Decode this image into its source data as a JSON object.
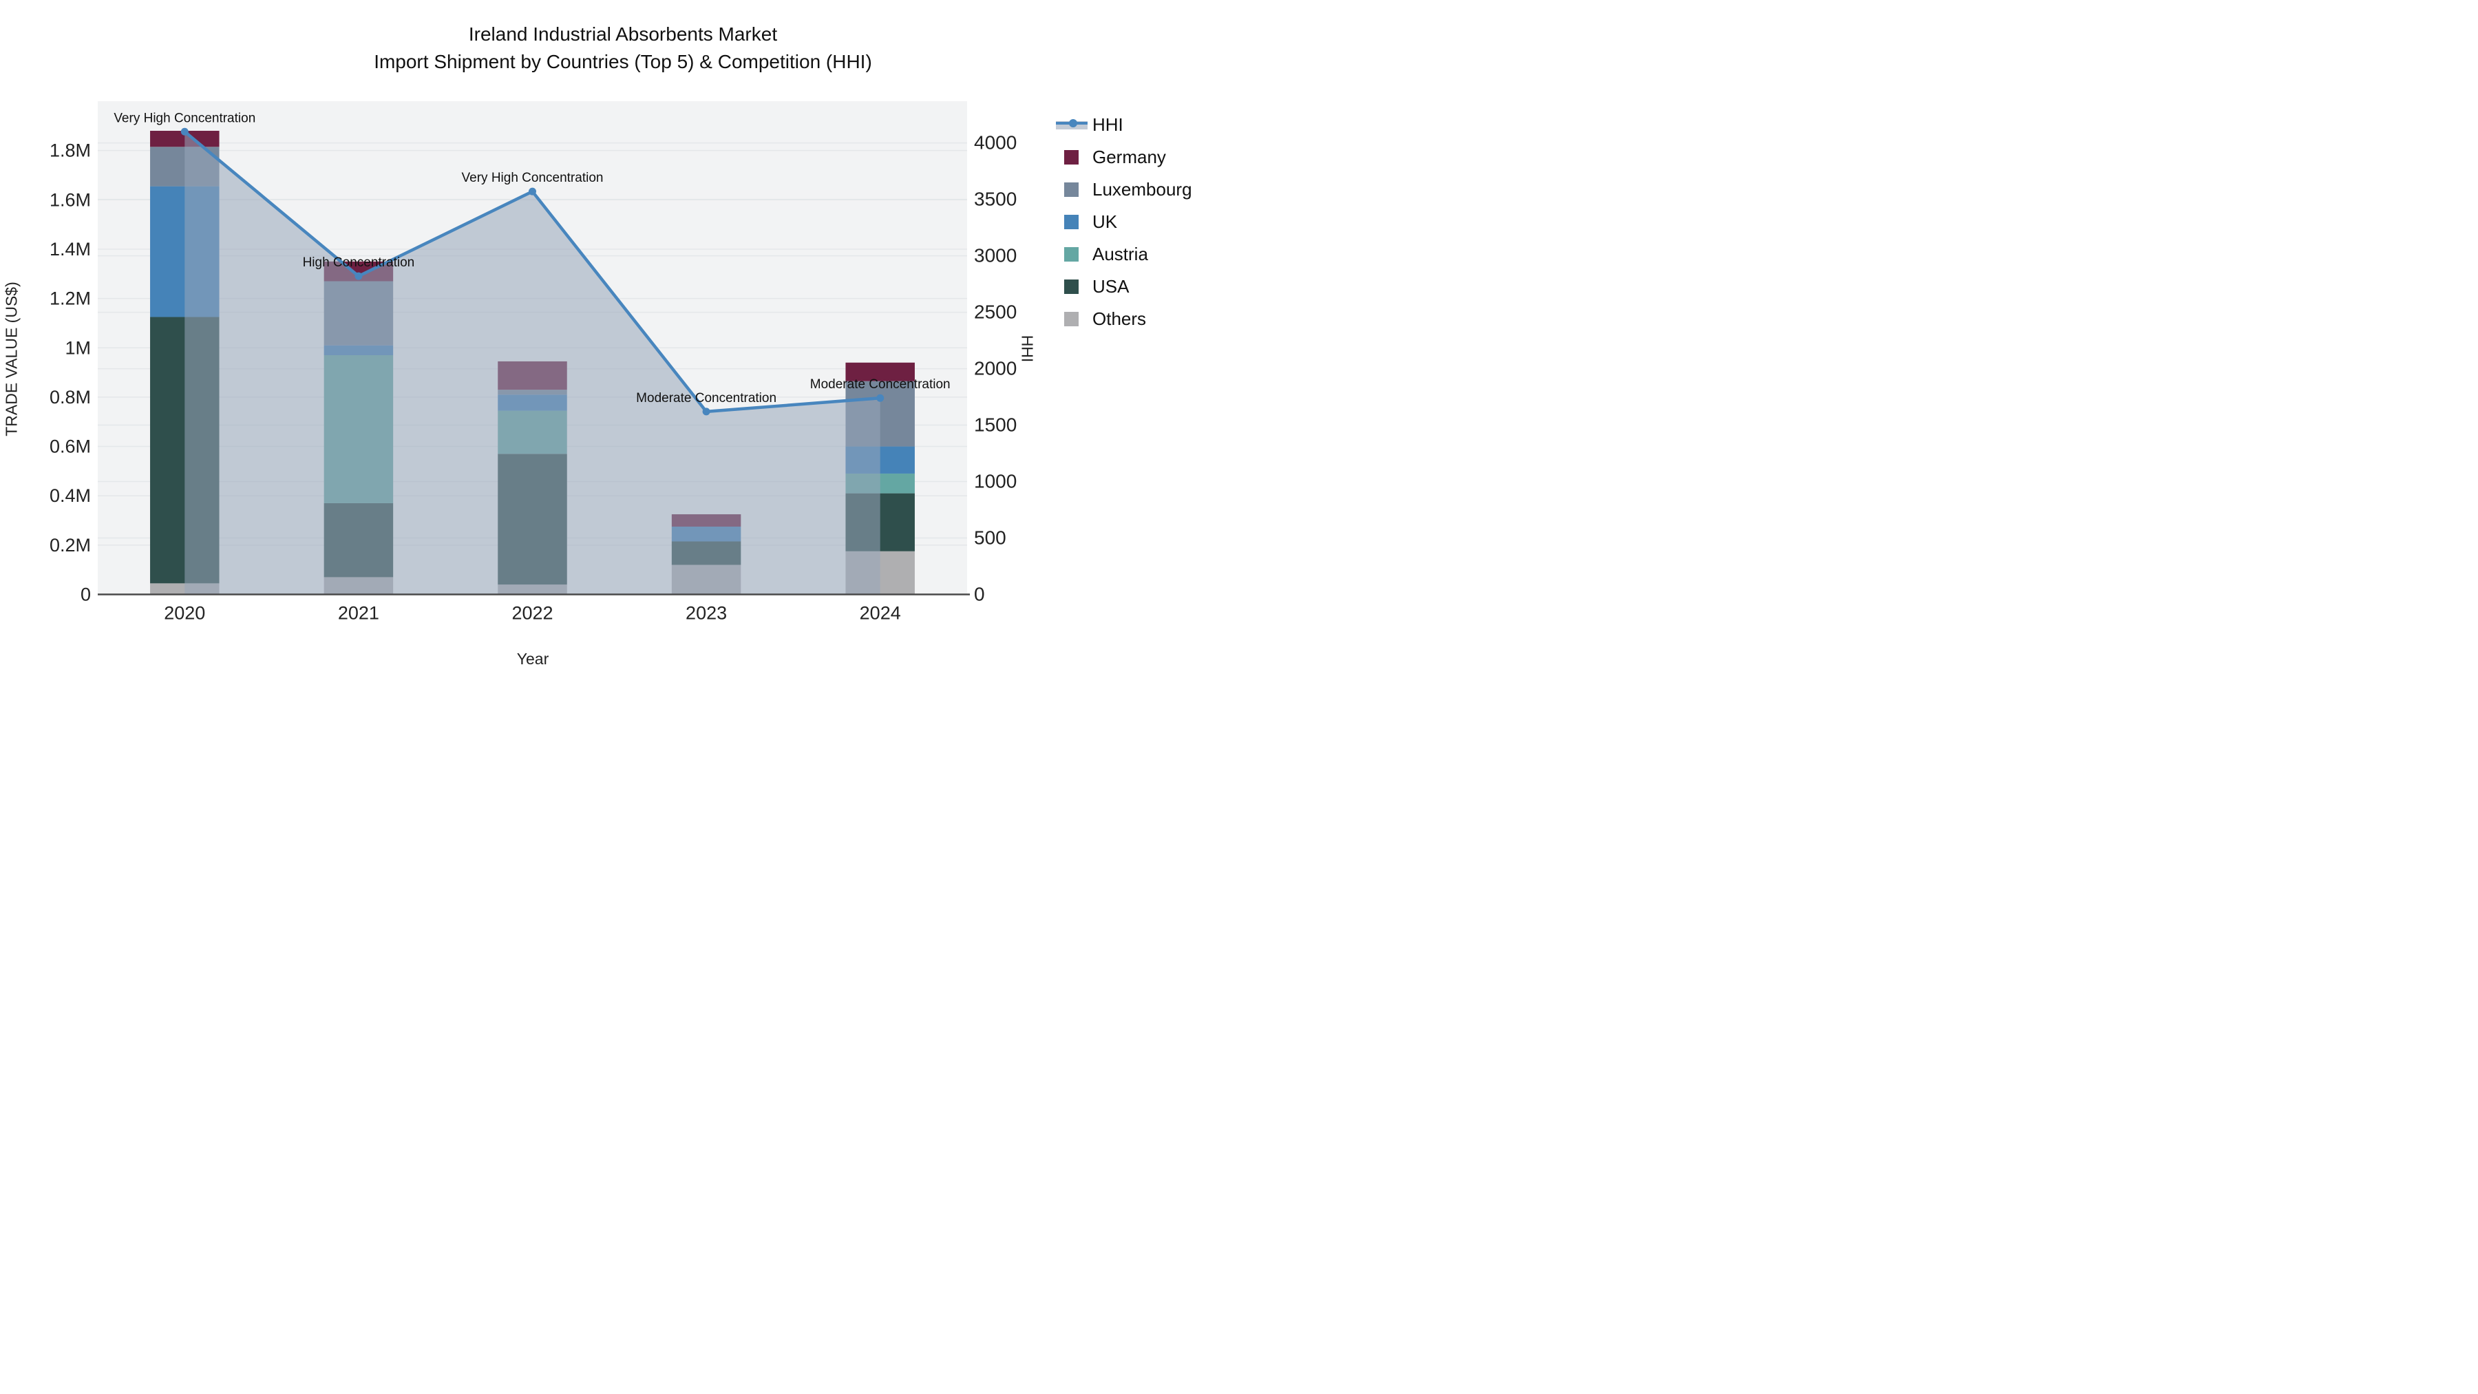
{
  "page": {
    "kind": "chart-figure"
  },
  "chart_data": {
    "type": "bar",
    "subtype": "stacked-bar-with-line",
    "title_line1": "Ireland Industrial Absorbents Market",
    "title_line2": "Import Shipment by Countries (Top 5) & Competition (HHI)",
    "xlabel": "Year",
    "ylabel_left": "TRADE VALUE (US$)",
    "ylabel_right": "HHI",
    "categories": [
      "2020",
      "2021",
      "2022",
      "2023",
      "2024"
    ],
    "bar_unit": "million US$",
    "series": [
      {
        "name": "Others",
        "color": "#AFAFB1",
        "values": [
          0.045,
          0.07,
          0.04,
          0.12,
          0.175
        ]
      },
      {
        "name": "USA",
        "color": "#2F4F4C",
        "values": [
          1.08,
          0.3,
          0.53,
          0.095,
          0.235
        ]
      },
      {
        "name": "Austria",
        "color": "#64A7A3",
        "values": [
          0,
          0.6,
          0.175,
          0,
          0.08
        ]
      },
      {
        "name": "UK",
        "color": "#4583B8",
        "values": [
          0.53,
          0.04,
          0.065,
          0.06,
          0.11
        ]
      },
      {
        "name": "Luxembourg",
        "color": "#76879B",
        "values": [
          0.16,
          0.26,
          0.02,
          0,
          0.265
        ]
      },
      {
        "name": "Germany",
        "color": "#6E2042",
        "values": [
          0.065,
          0.08,
          0.115,
          0.05,
          0.075
        ]
      }
    ],
    "bar_totals": [
      1.88,
      1.35,
      0.945,
      0.325,
      0.94
    ],
    "line_series": {
      "name": "HHI",
      "color": "#4886BE",
      "area_fill_color": "#97A6BA",
      "area_fill_opacity": 0.55,
      "values": [
        4100,
        2820,
        3570,
        1620,
        1740
      ]
    },
    "annotations": [
      {
        "year": "2020",
        "label": "Very High Concentration"
      },
      {
        "year": "2021",
        "label": "High Concentration"
      },
      {
        "year": "2022",
        "label": "Very High Concentration"
      },
      {
        "year": "2023",
        "label": "Moderate Concentration"
      },
      {
        "year": "2024",
        "label": "Moderate Concentration"
      }
    ],
    "y_left": {
      "min": 0,
      "max": 2.0,
      "tick_step": 0.2,
      "tick_labels": [
        "0",
        "0.2M",
        "0.4M",
        "0.6M",
        "0.8M",
        "1M",
        "1.2M",
        "1.4M",
        "1.6M",
        "1.8M"
      ]
    },
    "y_right": {
      "min": 0,
      "max": 4370,
      "tick_step": 500,
      "tick_labels": [
        "0",
        "500",
        "1000",
        "1500",
        "2000",
        "2500",
        "3000",
        "3500",
        "4000"
      ]
    },
    "grid": "on",
    "plot_bg_color": "#F2F3F4",
    "grid_color": "#E4E7E9",
    "axis_line_color": "#4A4A4A",
    "legend_position": "right",
    "legend_order": [
      "HHI",
      "Germany",
      "Luxembourg",
      "UK",
      "Austria",
      "USA",
      "Others"
    ]
  }
}
